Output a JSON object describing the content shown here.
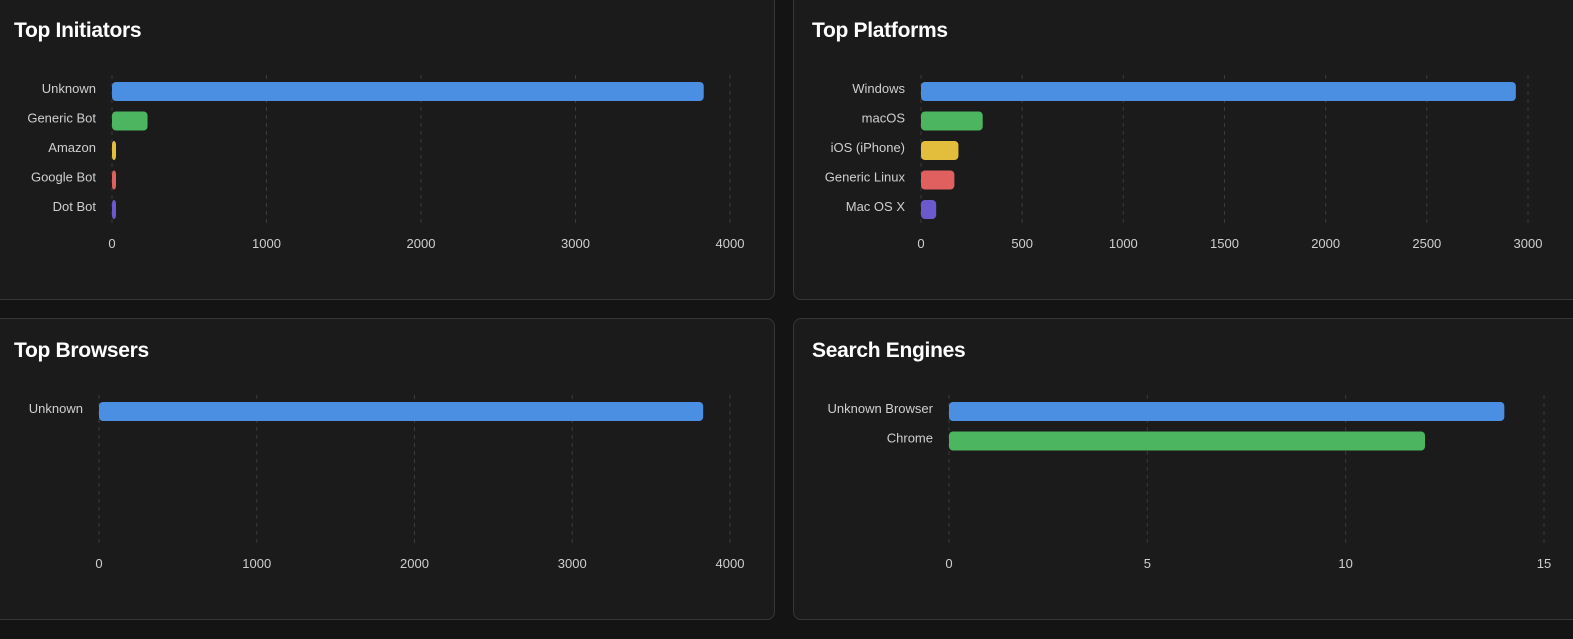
{
  "panels": [
    {
      "id": "top-initiators",
      "title": "Top Initiators"
    },
    {
      "id": "top-platforms",
      "title": "Top Platforms"
    },
    {
      "id": "top-browsers",
      "title": "Top Browsers"
    },
    {
      "id": "search-engines",
      "title": "Search Engines"
    }
  ],
  "chart_data": [
    {
      "type": "bar",
      "orientation": "horizontal",
      "title": "Top Initiators",
      "categories": [
        "Unknown",
        "Generic Bot",
        "Amazon",
        "Google Bot",
        "Dot Bot"
      ],
      "values": [
        3830,
        230,
        25,
        22,
        15
      ],
      "colors": [
        "#4a8fe2",
        "#4cb560",
        "#e3be3c",
        "#e06060",
        "#6a5acd"
      ],
      "xlim": [
        0,
        4000
      ],
      "ticks": [
        0,
        1000,
        2000,
        3000,
        4000
      ],
      "grid": true
    },
    {
      "type": "bar",
      "orientation": "horizontal",
      "title": "Top Platforms",
      "categories": [
        "Windows",
        "macOS",
        "iOS (iPhone)",
        "Generic Linux",
        "Mac OS X"
      ],
      "values": [
        2940,
        305,
        185,
        165,
        75
      ],
      "colors": [
        "#4a8fe2",
        "#4cb560",
        "#e3be3c",
        "#e06060",
        "#6a5acd"
      ],
      "xlim": [
        0,
        3000
      ],
      "ticks": [
        0,
        500,
        1000,
        1500,
        2000,
        2500,
        3000
      ],
      "grid": true
    },
    {
      "type": "bar",
      "orientation": "horizontal",
      "title": "Top Browsers",
      "categories": [
        "Unknown"
      ],
      "values": [
        3830
      ],
      "colors": [
        "#4a8fe2"
      ],
      "xlim": [
        0,
        4000
      ],
      "ticks": [
        0,
        1000,
        2000,
        3000,
        4000
      ],
      "grid": true
    },
    {
      "type": "bar",
      "orientation": "horizontal",
      "title": "Search Engines",
      "categories": [
        "Unknown Browser",
        "Chrome"
      ],
      "values": [
        14,
        12
      ],
      "colors": [
        "#4a8fe2",
        "#4cb560"
      ],
      "xlim": [
        0,
        15
      ],
      "ticks": [
        0,
        5,
        10,
        15
      ],
      "grid": true
    }
  ]
}
